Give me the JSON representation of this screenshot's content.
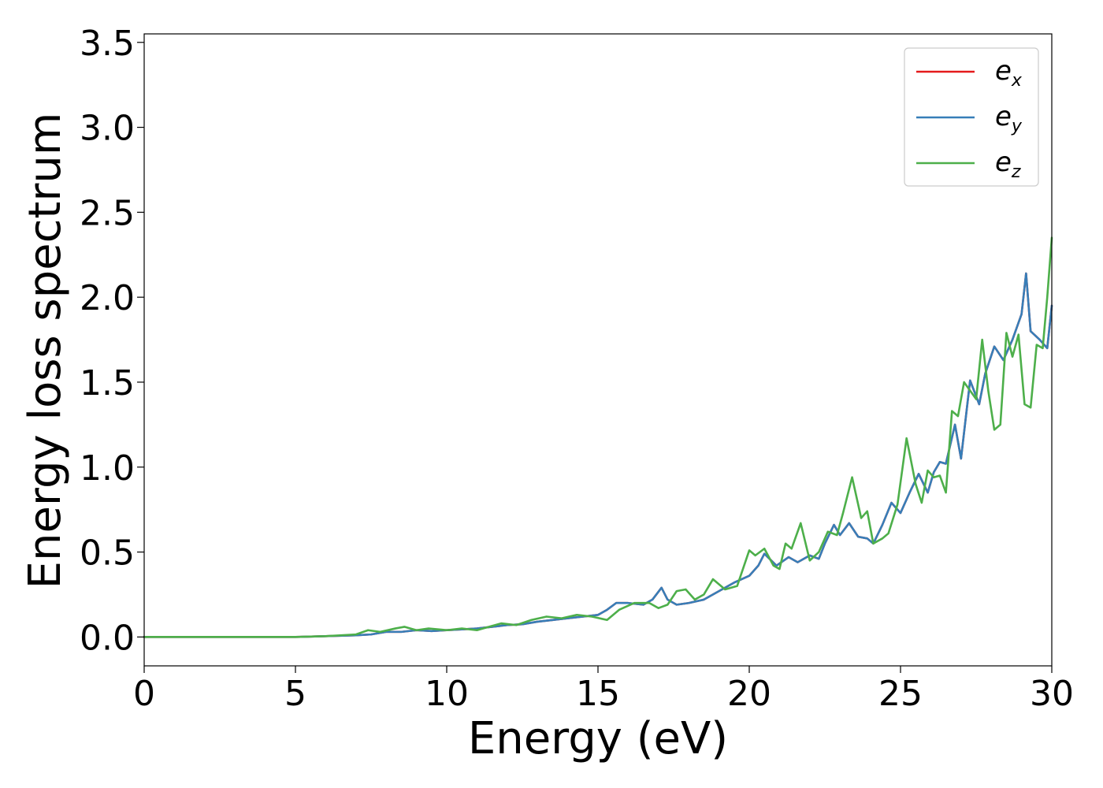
{
  "chart_data": {
    "type": "line",
    "title": "",
    "xlabel": "Energy (eV)",
    "ylabel": "Energy loss spectrum",
    "xlim": [
      0,
      30
    ],
    "ylim": [
      -0.17,
      3.55
    ],
    "xticks": [
      0,
      5,
      10,
      15,
      20,
      25,
      30
    ],
    "xtick_labels": [
      "0",
      "5",
      "10",
      "15",
      "20",
      "25",
      "30"
    ],
    "yticks": [
      0.0,
      0.5,
      1.0,
      1.5,
      2.0,
      2.5,
      3.0,
      3.5
    ],
    "ytick_labels": [
      "0.0",
      "0.5",
      "1.0",
      "1.5",
      "2.0",
      "2.5",
      "3.0",
      "3.5"
    ],
    "grid": false,
    "legend_position": "top-right",
    "series": [
      {
        "name": "e_x",
        "label_base": "e",
        "label_sub": "x",
        "color": "#e41a1c",
        "x": [
          0,
          5,
          6,
          7,
          7.5,
          8,
          8.5,
          9,
          9.5,
          10,
          10.5,
          11,
          11.5,
          12,
          12.5,
          13,
          13.5,
          14,
          14.5,
          15,
          15.3,
          15.6,
          16,
          16.5,
          16.8,
          17.1,
          17.3,
          17.6,
          18,
          18.5,
          19,
          19.5,
          20,
          20.3,
          20.5,
          20.9,
          21.3,
          21.6,
          22,
          22.3,
          22.5,
          22.8,
          23,
          23.3,
          23.6,
          23.9,
          24.1,
          24.4,
          24.7,
          25,
          25.3,
          25.6,
          25.9,
          26.1,
          26.3,
          26.5,
          26.8,
          27,
          27.3,
          27.6,
          27.8,
          28.1,
          28.4,
          28.7,
          29,
          29.15,
          29.3,
          29.6,
          29.85,
          30
        ],
        "y": [
          0.0,
          0.0,
          0.005,
          0.01,
          0.015,
          0.03,
          0.03,
          0.04,
          0.035,
          0.04,
          0.045,
          0.05,
          0.06,
          0.07,
          0.075,
          0.09,
          0.1,
          0.11,
          0.12,
          0.13,
          0.16,
          0.2,
          0.2,
          0.19,
          0.22,
          0.29,
          0.22,
          0.19,
          0.2,
          0.22,
          0.27,
          0.32,
          0.36,
          0.42,
          0.49,
          0.42,
          0.47,
          0.44,
          0.48,
          0.46,
          0.55,
          0.66,
          0.6,
          0.67,
          0.59,
          0.58,
          0.55,
          0.66,
          0.79,
          0.73,
          0.85,
          0.96,
          0.85,
          0.97,
          1.03,
          1.02,
          1.25,
          1.05,
          1.51,
          1.37,
          1.55,
          1.71,
          1.63,
          1.75,
          1.9,
          2.14,
          1.8,
          1.75,
          1.7,
          1.95
        ]
      },
      {
        "name": "e_y",
        "label_base": "e",
        "label_sub": "y",
        "color": "#377eb8",
        "x": [
          0,
          5,
          6,
          7,
          7.5,
          8,
          8.5,
          9,
          9.5,
          10,
          10.5,
          11,
          11.5,
          12,
          12.5,
          13,
          13.5,
          14,
          14.5,
          15,
          15.3,
          15.6,
          16,
          16.5,
          16.8,
          17.1,
          17.3,
          17.6,
          18,
          18.5,
          19,
          19.5,
          20,
          20.3,
          20.5,
          20.9,
          21.3,
          21.6,
          22,
          22.3,
          22.5,
          22.8,
          23,
          23.3,
          23.6,
          23.9,
          24.1,
          24.4,
          24.7,
          25,
          25.3,
          25.6,
          25.9,
          26.1,
          26.3,
          26.5,
          26.8,
          27,
          27.3,
          27.6,
          27.8,
          28.1,
          28.4,
          28.7,
          29,
          29.15,
          29.3,
          29.6,
          29.85,
          30
        ],
        "y": [
          0.0,
          0.0,
          0.005,
          0.01,
          0.015,
          0.03,
          0.03,
          0.04,
          0.035,
          0.04,
          0.045,
          0.05,
          0.06,
          0.07,
          0.075,
          0.09,
          0.1,
          0.11,
          0.12,
          0.13,
          0.16,
          0.2,
          0.2,
          0.19,
          0.22,
          0.29,
          0.22,
          0.19,
          0.2,
          0.22,
          0.27,
          0.32,
          0.36,
          0.42,
          0.49,
          0.42,
          0.47,
          0.44,
          0.48,
          0.46,
          0.55,
          0.66,
          0.6,
          0.67,
          0.59,
          0.58,
          0.55,
          0.66,
          0.79,
          0.73,
          0.85,
          0.96,
          0.85,
          0.97,
          1.03,
          1.02,
          1.25,
          1.05,
          1.51,
          1.37,
          1.55,
          1.71,
          1.63,
          1.75,
          1.9,
          2.14,
          1.8,
          1.75,
          1.7,
          1.95
        ]
      },
      {
        "name": "e_z",
        "label_base": "e",
        "label_sub": "z",
        "color": "#4daf4a",
        "x": [
          0,
          5,
          6,
          7,
          7.4,
          7.8,
          8.3,
          8.6,
          9,
          9.4,
          10,
          10.5,
          11,
          11.4,
          11.8,
          12.3,
          12.8,
          13.3,
          13.8,
          14.3,
          14.8,
          15.3,
          15.7,
          16.2,
          16.7,
          17,
          17.3,
          17.6,
          17.9,
          18.2,
          18.5,
          18.8,
          19.2,
          19.6,
          20,
          20.2,
          20.5,
          20.8,
          21,
          21.2,
          21.4,
          21.7,
          22,
          22.3,
          22.6,
          22.9,
          23.1,
          23.4,
          23.7,
          23.9,
          24.1,
          24.4,
          24.6,
          24.9,
          25.2,
          25.5,
          25.7,
          25.9,
          26.1,
          26.3,
          26.5,
          26.7,
          26.9,
          27.1,
          27.3,
          27.5,
          27.7,
          27.9,
          28.1,
          28.3,
          28.5,
          28.7,
          28.9,
          29.1,
          29.3,
          29.5,
          29.7,
          29.85,
          30
        ],
        "y": [
          0.0,
          0.0,
          0.005,
          0.015,
          0.04,
          0.03,
          0.05,
          0.06,
          0.04,
          0.05,
          0.04,
          0.05,
          0.04,
          0.06,
          0.08,
          0.07,
          0.1,
          0.12,
          0.11,
          0.13,
          0.12,
          0.1,
          0.16,
          0.2,
          0.2,
          0.17,
          0.19,
          0.27,
          0.28,
          0.22,
          0.25,
          0.34,
          0.28,
          0.3,
          0.51,
          0.48,
          0.52,
          0.42,
          0.4,
          0.55,
          0.52,
          0.67,
          0.45,
          0.5,
          0.62,
          0.6,
          0.73,
          0.94,
          0.7,
          0.74,
          0.55,
          0.58,
          0.61,
          0.78,
          1.17,
          0.9,
          0.79,
          0.98,
          0.94,
          0.95,
          0.85,
          1.33,
          1.3,
          1.5,
          1.45,
          1.4,
          1.75,
          1.45,
          1.22,
          1.25,
          1.79,
          1.65,
          1.78,
          1.37,
          1.35,
          1.72,
          1.7,
          2.0,
          2.35
        ]
      }
    ]
  }
}
